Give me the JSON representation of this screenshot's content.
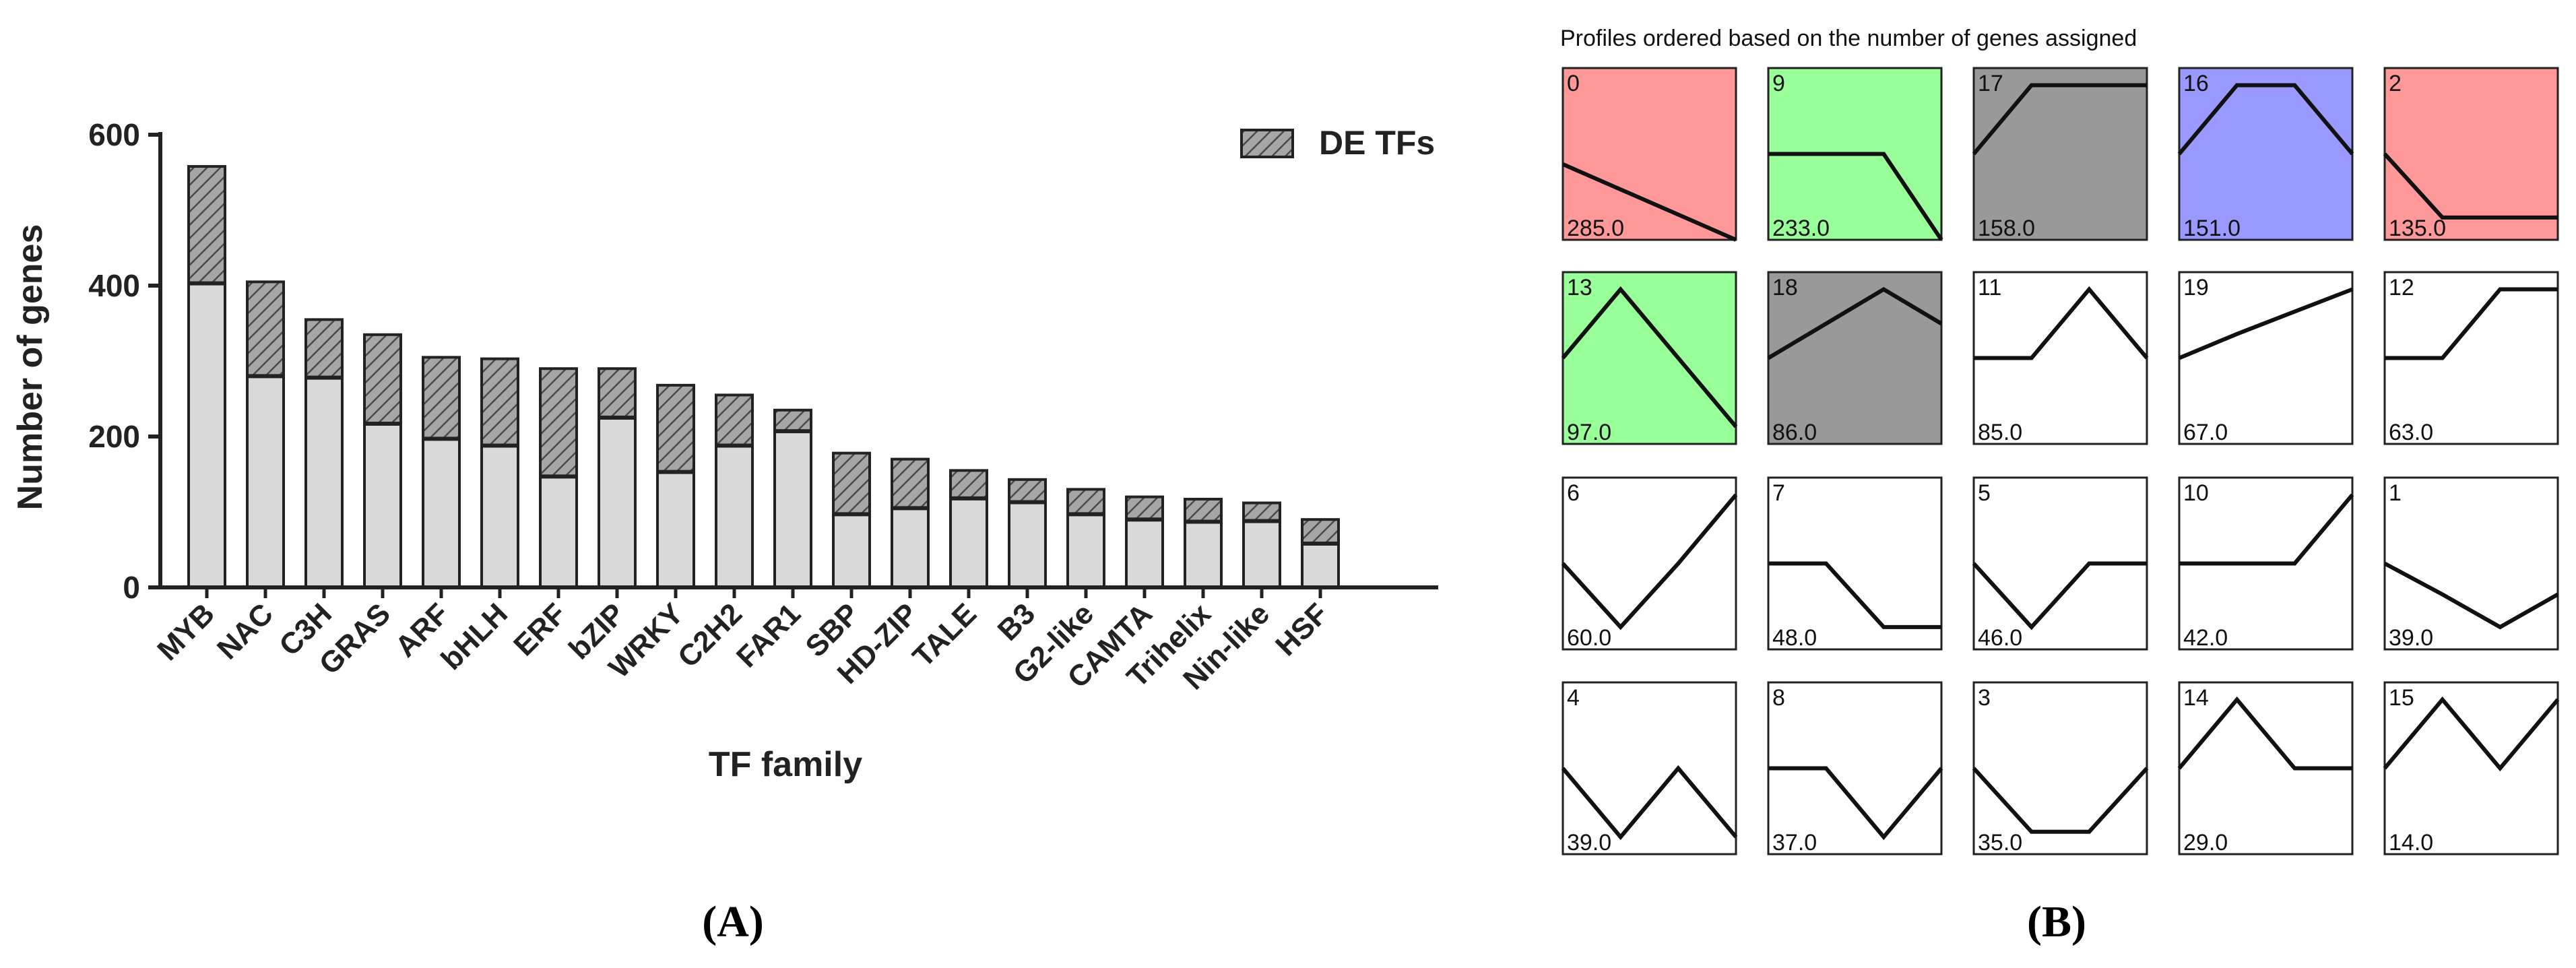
{
  "panel_labels": {
    "a": "(A)",
    "b": "(B)"
  },
  "chart_data": [
    {
      "type": "bar",
      "stacked": true,
      "ylabel": "Number of genes",
      "xlabel": "TF family",
      "ylim": [
        0,
        600
      ],
      "yticks": [
        0,
        200,
        400,
        600
      ],
      "legend": {
        "position": "top-right",
        "label": "DE TFs"
      },
      "categories": [
        "MYB",
        "NAC",
        "C3H",
        "GRAS",
        "ARF",
        "bHLH",
        "ERF",
        "bZIP",
        "WRKY",
        "C2H2",
        "FAR1",
        "SBP",
        "HD-ZIP",
        "TALE",
        "B3",
        "G2-like",
        "CAMTA",
        "Trihelix",
        "Nin-like",
        "HSF"
      ],
      "totals": [
        558,
        405,
        355,
        335,
        305,
        303,
        290,
        290,
        268,
        255,
        235,
        178,
        170,
        155,
        143,
        130,
        120,
        117,
        112,
        90
      ],
      "non_de_values": [
        403,
        280,
        278,
        217,
        197,
        188,
        147,
        225,
        153,
        188,
        207,
        97,
        105,
        118,
        113,
        97,
        90,
        87,
        88,
        58
      ],
      "bar_fill": "#d9d9d9",
      "hatch_fill": "#a6a6a6",
      "grid": false
    },
    {
      "type": "profile-grid",
      "title": "Profiles ordered based on the number of genes assigned",
      "colors": {
        "red": "#ff9999",
        "green": "#99ff99",
        "gray": "#999999",
        "blue": "#9999ff",
        "white": "#ffffff"
      },
      "profiles": [
        {
          "id": "0",
          "count": "285.0",
          "color": "red",
          "points": [
            0.56,
            0.78,
            1.0
          ]
        },
        {
          "id": "9",
          "count": "233.0",
          "color": "green",
          "points": [
            0.5,
            0.5,
            0.5,
            1.0
          ]
        },
        {
          "id": "17",
          "count": "158.0",
          "color": "gray",
          "points": [
            0.5,
            0.1,
            0.1,
            0.1
          ]
        },
        {
          "id": "16",
          "count": "151.0",
          "color": "blue",
          "points": [
            0.5,
            0.1,
            0.1,
            0.5
          ]
        },
        {
          "id": "2",
          "count": "135.0",
          "color": "red",
          "points": [
            0.5,
            0.87,
            0.87,
            0.87
          ]
        },
        {
          "id": "13",
          "count": "97.0",
          "color": "green",
          "points": [
            0.5,
            0.1,
            0.5,
            0.9
          ]
        },
        {
          "id": "18",
          "count": "86.0",
          "color": "gray",
          "points": [
            0.5,
            0.3,
            0.1,
            0.3
          ]
        },
        {
          "id": "11",
          "count": "85.0",
          "color": "white",
          "points": [
            0.5,
            0.5,
            0.1,
            0.5
          ]
        },
        {
          "id": "19",
          "count": "67.0",
          "color": "white",
          "points": [
            0.5,
            0.36,
            0.23,
            0.1
          ]
        },
        {
          "id": "12",
          "count": "63.0",
          "color": "white",
          "points": [
            0.5,
            0.5,
            0.1,
            0.1
          ]
        },
        {
          "id": "6",
          "count": "60.0",
          "color": "white",
          "points": [
            0.5,
            0.87,
            0.5,
            0.1
          ]
        },
        {
          "id": "7",
          "count": "48.0",
          "color": "white",
          "points": [
            0.5,
            0.5,
            0.87,
            0.87
          ]
        },
        {
          "id": "5",
          "count": "46.0",
          "color": "white",
          "points": [
            0.5,
            0.87,
            0.5,
            0.5
          ]
        },
        {
          "id": "10",
          "count": "42.0",
          "color": "white",
          "points": [
            0.5,
            0.5,
            0.5,
            0.1
          ]
        },
        {
          "id": "1",
          "count": "39.0",
          "color": "white",
          "points": [
            0.5,
            0.68,
            0.87,
            0.68
          ]
        },
        {
          "id": "4",
          "count": "39.0",
          "color": "white",
          "points": [
            0.5,
            0.9,
            0.5,
            0.9
          ]
        },
        {
          "id": "8",
          "count": "37.0",
          "color": "white",
          "points": [
            0.5,
            0.5,
            0.9,
            0.5
          ]
        },
        {
          "id": "3",
          "count": "35.0",
          "color": "white",
          "points": [
            0.5,
            0.87,
            0.87,
            0.5
          ]
        },
        {
          "id": "14",
          "count": "29.0",
          "color": "white",
          "points": [
            0.5,
            0.1,
            0.5,
            0.5
          ]
        },
        {
          "id": "15",
          "count": "14.0",
          "color": "white",
          "points": [
            0.5,
            0.1,
            0.5,
            0.1
          ]
        }
      ]
    }
  ]
}
